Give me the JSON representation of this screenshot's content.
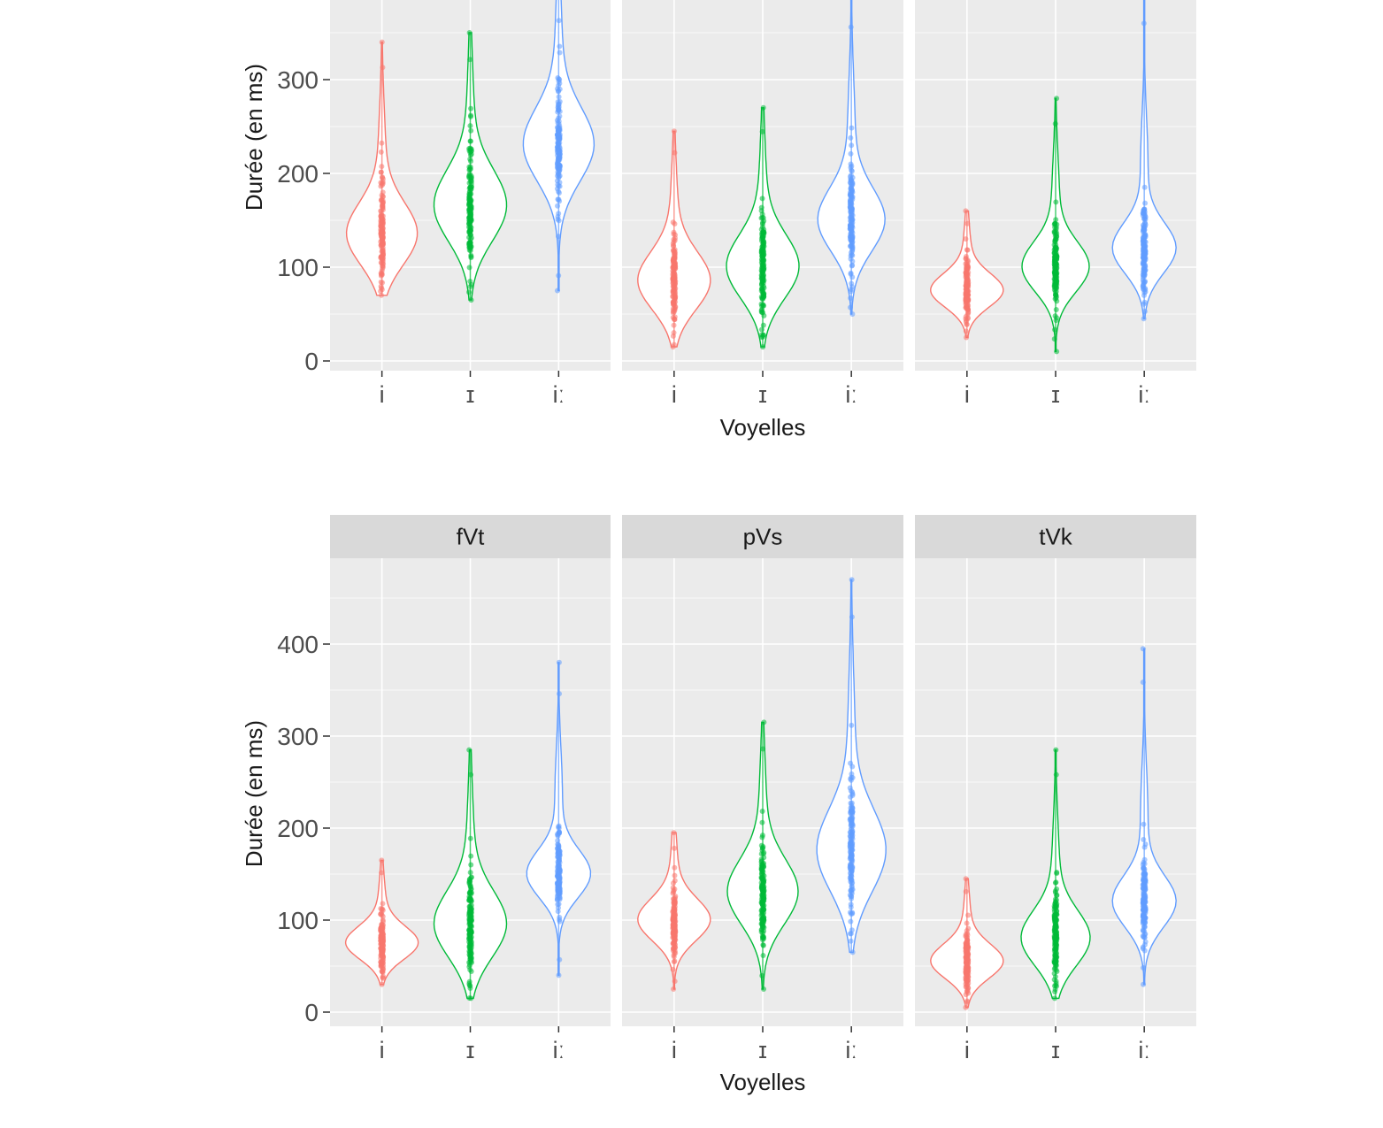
{
  "colors": {
    "i": "#F8766D",
    "ɪ": "#00BA38",
    "iː": "#619CFF",
    "panel_bg": "#EBEBEB",
    "strip_bg": "#D9D9D9",
    "grid": "#FFFFFF",
    "text": "#4D4D4D"
  },
  "chart_data": [
    {
      "type": "violin",
      "xlabel": "Voyelles",
      "ylabel": "Durée (en ms)",
      "ylim": [
        0,
        390
      ],
      "yticks": [
        0,
        100,
        200,
        300
      ],
      "categories": [
        "i",
        "ɪ",
        "iː"
      ],
      "facets": [
        {
          "strip": "",
          "series": [
            {
              "name": "i",
              "min": 70,
              "max": 340,
              "mode": 135,
              "spread": 0.55
            },
            {
              "name": "ɪ",
              "min": 65,
              "max": 350,
              "mode": 165,
              "spread": 0.6
            },
            {
              "name": "iː",
              "min": 75,
              "max": 395,
              "mode": 230,
              "spread": 0.55
            }
          ]
        },
        {
          "strip": "",
          "series": [
            {
              "name": "i",
              "min": 15,
              "max": 245,
              "mode": 85,
              "spread": 0.6
            },
            {
              "name": "ɪ",
              "min": 15,
              "max": 270,
              "mode": 100,
              "spread": 0.6
            },
            {
              "name": "iː",
              "min": 50,
              "max": 390,
              "mode": 150,
              "spread": 0.45
            }
          ]
        },
        {
          "strip": "",
          "series": [
            {
              "name": "i",
              "min": 25,
              "max": 160,
              "mode": 75,
              "spread": 0.6
            },
            {
              "name": "ɪ",
              "min": 10,
              "max": 280,
              "mode": 100,
              "spread": 0.45
            },
            {
              "name": "iː",
              "min": 45,
              "max": 395,
              "mode": 120,
              "spread": 0.35
            }
          ]
        }
      ]
    },
    {
      "type": "violin",
      "xlabel": "Voyelles",
      "ylabel": "Durée (en ms)",
      "ylim": [
        0,
        470
      ],
      "yticks": [
        0,
        100,
        200,
        300,
        400
      ],
      "categories": [
        "i",
        "ɪ",
        "iː"
      ],
      "facets": [
        {
          "strip": "fVt",
          "series": [
            {
              "name": "i",
              "min": 30,
              "max": 165,
              "mode": 75,
              "spread": 0.6
            },
            {
              "name": "ɪ",
              "min": 15,
              "max": 285,
              "mode": 95,
              "spread": 0.6
            },
            {
              "name": "iː",
              "min": 40,
              "max": 380,
              "mode": 150,
              "spread": 0.35
            }
          ]
        },
        {
          "strip": "pVs",
          "series": [
            {
              "name": "i",
              "min": 25,
              "max": 195,
              "mode": 100,
              "spread": 0.6
            },
            {
              "name": "ɪ",
              "min": 25,
              "max": 315,
              "mode": 130,
              "spread": 0.55
            },
            {
              "name": "iː",
              "min": 65,
              "max": 470,
              "mode": 175,
              "spread": 0.5
            }
          ]
        },
        {
          "strip": "tVk",
          "series": [
            {
              "name": "i",
              "min": 5,
              "max": 145,
              "mode": 55,
              "spread": 0.6
            },
            {
              "name": "ɪ",
              "min": 15,
              "max": 285,
              "mode": 80,
              "spread": 0.5
            },
            {
              "name": "iː",
              "min": 30,
              "max": 395,
              "mode": 120,
              "spread": 0.35
            }
          ]
        }
      ]
    }
  ]
}
